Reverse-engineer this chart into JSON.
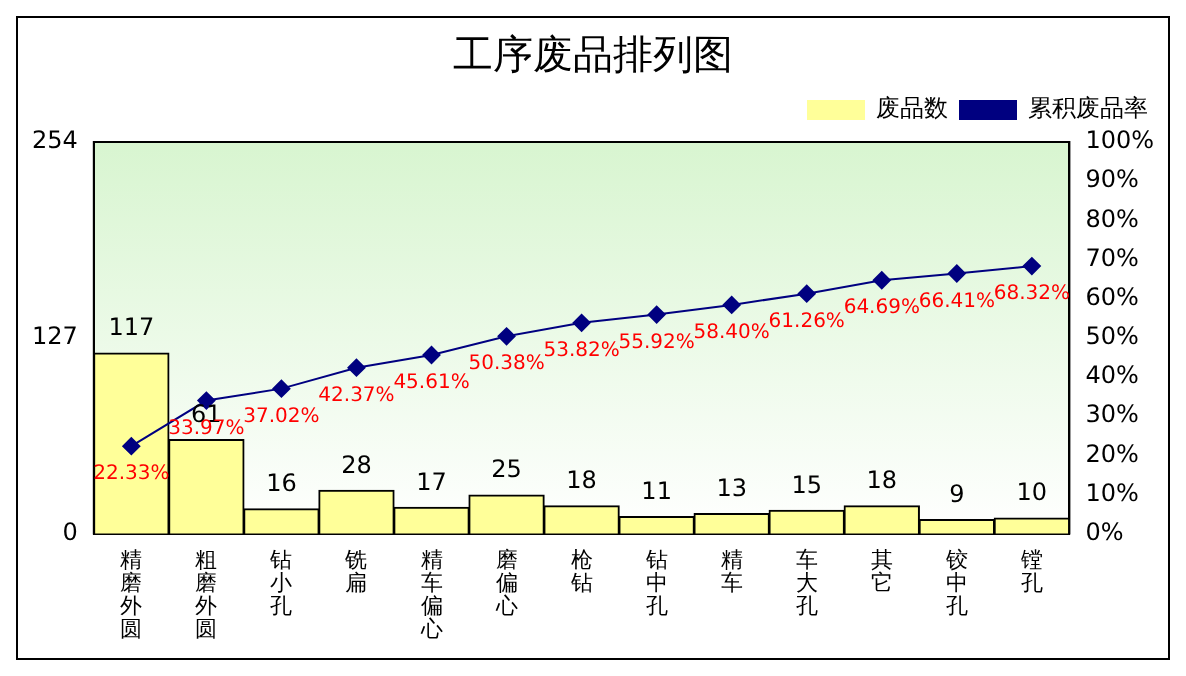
{
  "chart_data": {
    "type": "bar",
    "title": "工序废品排列图",
    "categories": [
      "精磨外圆",
      "粗磨外圆",
      "钻小孔",
      "铣扁",
      "精车偏心",
      "磨偏心",
      "枪钻",
      "钻中孔",
      "精车",
      "车大孔",
      "其它",
      "铰中孔",
      "镗孔"
    ],
    "series": [
      {
        "name": "废品数",
        "type": "bar",
        "color": "#ffff99",
        "values": [
          117,
          61,
          16,
          28,
          17,
          25,
          18,
          11,
          13,
          15,
          18,
          9,
          10
        ],
        "value_labels": [
          "117",
          "61",
          "16",
          "28",
          "17",
          "25",
          "18",
          "11",
          "13",
          "15",
          "18",
          "9",
          "10"
        ]
      },
      {
        "name": "累积废品率",
        "type": "line",
        "axis": "y2",
        "color": "#000080",
        "marker": "diamond",
        "values": [
          22.33,
          33.97,
          37.02,
          42.37,
          45.61,
          50.38,
          53.82,
          55.92,
          58.4,
          61.26,
          64.69,
          66.41,
          68.32
        ],
        "value_labels": [
          "22.33%",
          "33.97%",
          "37.02%",
          "42.37%",
          "45.61%",
          "50.38%",
          "53.82%",
          "55.92%",
          "58.40%",
          "61.26%",
          "64.69%",
          "66.41%",
          "68.32%"
        ]
      }
    ],
    "ylim": [
      0,
      254
    ],
    "yticks": [
      0,
      127,
      254
    ],
    "y2lim": [
      0,
      100
    ],
    "y2ticks": [
      {
        "value": 0,
        "label": "0%"
      },
      {
        "value": 10,
        "label": "10%"
      },
      {
        "value": 20,
        "label": "20%"
      },
      {
        "value": 30,
        "label": "30%"
      },
      {
        "value": 40,
        "label": "40%"
      },
      {
        "value": 50,
        "label": "50%"
      },
      {
        "value": 60,
        "label": "60%"
      },
      {
        "value": 70,
        "label": "70%"
      },
      {
        "value": 80,
        "label": "80%"
      },
      {
        "value": 90,
        "label": "90%"
      },
      {
        "value": 100,
        "label": "100%"
      }
    ],
    "legend": "top right",
    "grid": false
  }
}
